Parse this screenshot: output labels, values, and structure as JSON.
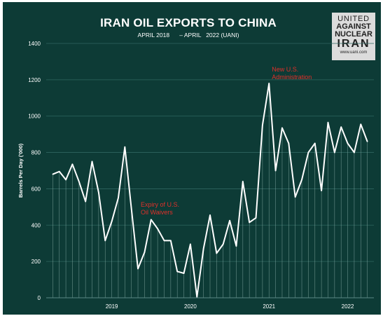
{
  "header": {
    "title": "IRAN OIL EXPORTS TO CHINA",
    "subtitle": "APRIL 2018      – APRIL   2022 (UANI)"
  },
  "logo": {
    "line1": "UNITED",
    "line2": "AGAINST",
    "line3": "NUCLEAR",
    "line4": "IRAN",
    "url": "www.uani.com"
  },
  "colors": {
    "background": "#0d3b36",
    "line": "#ffffff",
    "annotation": "#e0302a",
    "axis_text": "#ffffff"
  },
  "chart_data": {
    "type": "line",
    "title": "IRAN OIL EXPORTS TO CHINA",
    "subtitle": "APRIL 2018      – APRIL   2022 (UANI)",
    "xlabel": "",
    "ylabel": "Barrels Per Day ('000)",
    "ylim": [
      0,
      1400
    ],
    "yticks": [
      0,
      200,
      400,
      600,
      800,
      1000,
      1200,
      1400
    ],
    "xlim": [
      "2018-03",
      "2022-05"
    ],
    "xticks": [
      {
        "label": "2019",
        "x": "2019-01"
      },
      {
        "label": "2020",
        "x": "2020-01"
      },
      {
        "label": "2021",
        "x": "2021-01"
      },
      {
        "label": "2022",
        "x": "2022-01"
      }
    ],
    "grid": true,
    "series": [
      {
        "x": [
          "2018-04",
          "2018-05",
          "2018-06",
          "2018-07",
          "2018-08",
          "2018-09",
          "2018-10",
          "2018-11",
          "2018-12",
          "2019-01",
          "2019-02",
          "2019-03",
          "2019-04",
          "2019-05",
          "2019-06",
          "2019-07",
          "2019-08",
          "2019-09",
          "2019-10",
          "2019-11",
          "2019-12",
          "2020-01",
          "2020-02",
          "2020-03",
          "2020-04",
          "2020-05",
          "2020-06",
          "2020-07",
          "2020-08",
          "2020-09",
          "2020-10",
          "2020-11",
          "2020-12",
          "2021-01",
          "2021-02",
          "2021-03",
          "2021-04",
          "2021-05",
          "2021-06",
          "2021-07",
          "2021-08",
          "2021-09",
          "2021-10",
          "2021-11",
          "2021-12",
          "2022-01",
          "2022-02",
          "2022-03",
          "2022-04"
        ],
        "values": [
          680,
          695,
          650,
          735,
          640,
          530,
          750,
          580,
          315,
          420,
          550,
          830,
          490,
          160,
          250,
          430,
          380,
          315,
          315,
          145,
          135,
          295,
          5,
          270,
          455,
          245,
          295,
          425,
          285,
          640,
          415,
          440,
          950,
          1180,
          700,
          935,
          850,
          555,
          650,
          800,
          850,
          590,
          965,
          800,
          940,
          850,
          800,
          955,
          860
        ]
      }
    ],
    "annotations": [
      {
        "text": "Expiry of U.S.",
        "x": "2019-05"
      },
      {
        "text": "Oil Waivers",
        "x": "2019-05"
      },
      {
        "text": "New U.S.",
        "x": "2021-01"
      },
      {
        "text": "Administration",
        "x": "2021-01"
      }
    ]
  }
}
